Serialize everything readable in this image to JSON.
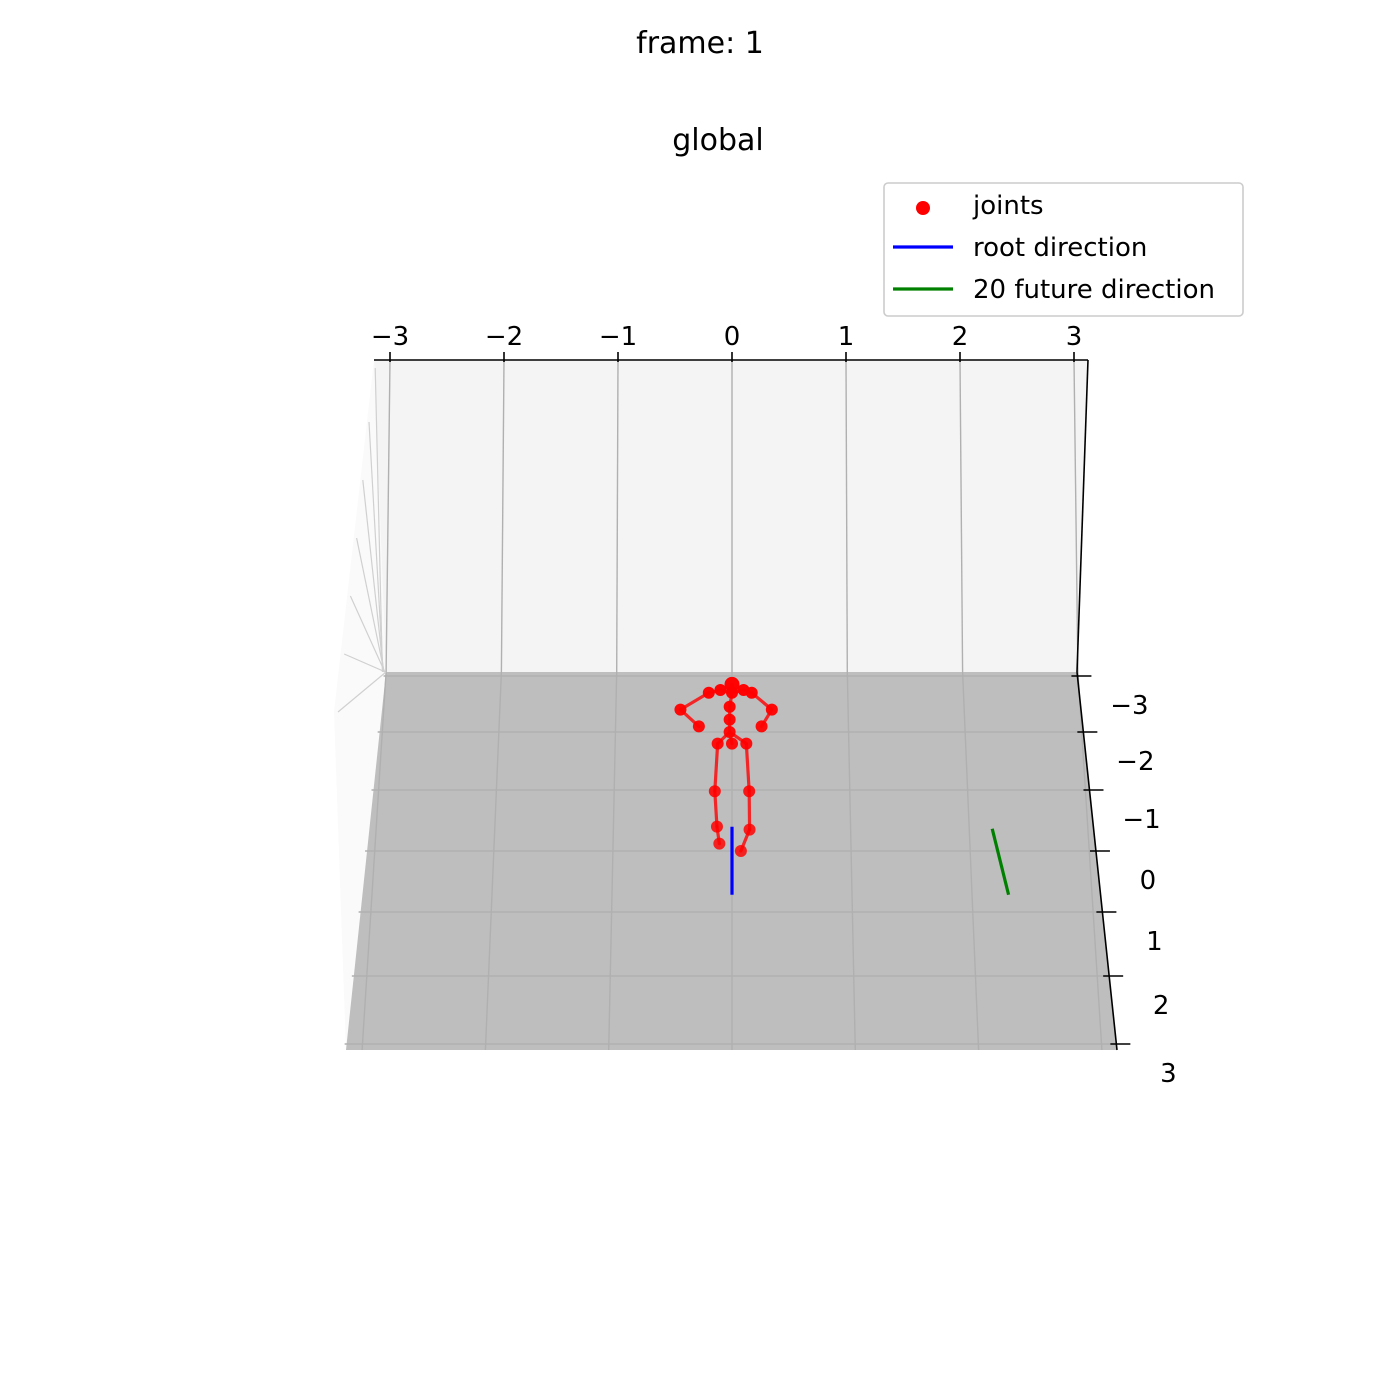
{
  "figure": {
    "suptitle": "frame: 1",
    "title": "global"
  },
  "legend": {
    "placement": "top-right",
    "entries": [
      {
        "label": "joints",
        "marker": "dot",
        "color": "#ff0000"
      },
      {
        "label": "root direction",
        "marker": "line",
        "color": "#0000ff"
      },
      {
        "label": "20 future direction",
        "marker": "line",
        "color": "#008000"
      }
    ]
  },
  "chart_data": {
    "type": "scatter",
    "projection": "3d",
    "title": "global",
    "xlim": [
      -3.2,
      3.2
    ],
    "ylim": [
      -3.2,
      3.2
    ],
    "x_ticks": [
      "−3",
      "−2",
      "−1",
      "0",
      "1",
      "2",
      "3"
    ],
    "y_ticks": [
      "−3",
      "−2",
      "−1",
      "0",
      "1",
      "2",
      "3"
    ],
    "grid": true,
    "colors": {
      "joints": "#ff0000",
      "bones": "#ff0000",
      "root_direction": "#0000ff",
      "future_direction": "#008000",
      "floor": "#bebebe",
      "back_wall": "#f4f4f4"
    },
    "joints": [
      {
        "x": 0.0,
        "y": -2.85
      },
      {
        "x": -0.1,
        "y": -2.75
      },
      {
        "x": 0.1,
        "y": -2.75
      },
      {
        "x": 0.0,
        "y": -2.7
      },
      {
        "x": -0.2,
        "y": -2.7
      },
      {
        "x": 0.17,
        "y": -2.7
      },
      {
        "x": -0.44,
        "y": -2.4
      },
      {
        "x": 0.34,
        "y": -2.4
      },
      {
        "x": -0.28,
        "y": -2.1
      },
      {
        "x": 0.25,
        "y": -2.1
      },
      {
        "x": -0.02,
        "y": -2.45
      },
      {
        "x": -0.02,
        "y": -2.22
      },
      {
        "x": -0.02,
        "y": -2.0
      },
      {
        "x": -0.12,
        "y": -1.8
      },
      {
        "x": 0.0,
        "y": -1.8
      },
      {
        "x": 0.12,
        "y": -1.8
      },
      {
        "x": -0.14,
        "y": -0.98
      },
      {
        "x": 0.14,
        "y": -0.98
      },
      {
        "x": -0.12,
        "y": -0.4
      },
      {
        "x": 0.14,
        "y": -0.35
      },
      {
        "x": -0.1,
        "y": -0.12
      },
      {
        "x": 0.07,
        "y": 0.0
      }
    ],
    "bones": [
      [
        0,
        3
      ],
      [
        3,
        1
      ],
      [
        3,
        2
      ],
      [
        1,
        4
      ],
      [
        2,
        5
      ],
      [
        4,
        6
      ],
      [
        6,
        8
      ],
      [
        5,
        7
      ],
      [
        7,
        9
      ],
      [
        3,
        10
      ],
      [
        10,
        11
      ],
      [
        11,
        12
      ],
      [
        12,
        13
      ],
      [
        12,
        14
      ],
      [
        12,
        15
      ],
      [
        13,
        16
      ],
      [
        16,
        18
      ],
      [
        18,
        20
      ],
      [
        15,
        17
      ],
      [
        17,
        19
      ],
      [
        19,
        21
      ]
    ],
    "root_direction": {
      "from": {
        "x": 0.0,
        "y": -0.3
      },
      "to": {
        "x": 0.0,
        "y": 0.8
      }
    },
    "future_direction": {
      "from": {
        "x": 2.07,
        "y": -0.3
      },
      "to": {
        "x": 2.12,
        "y": 0.8
      }
    }
  }
}
